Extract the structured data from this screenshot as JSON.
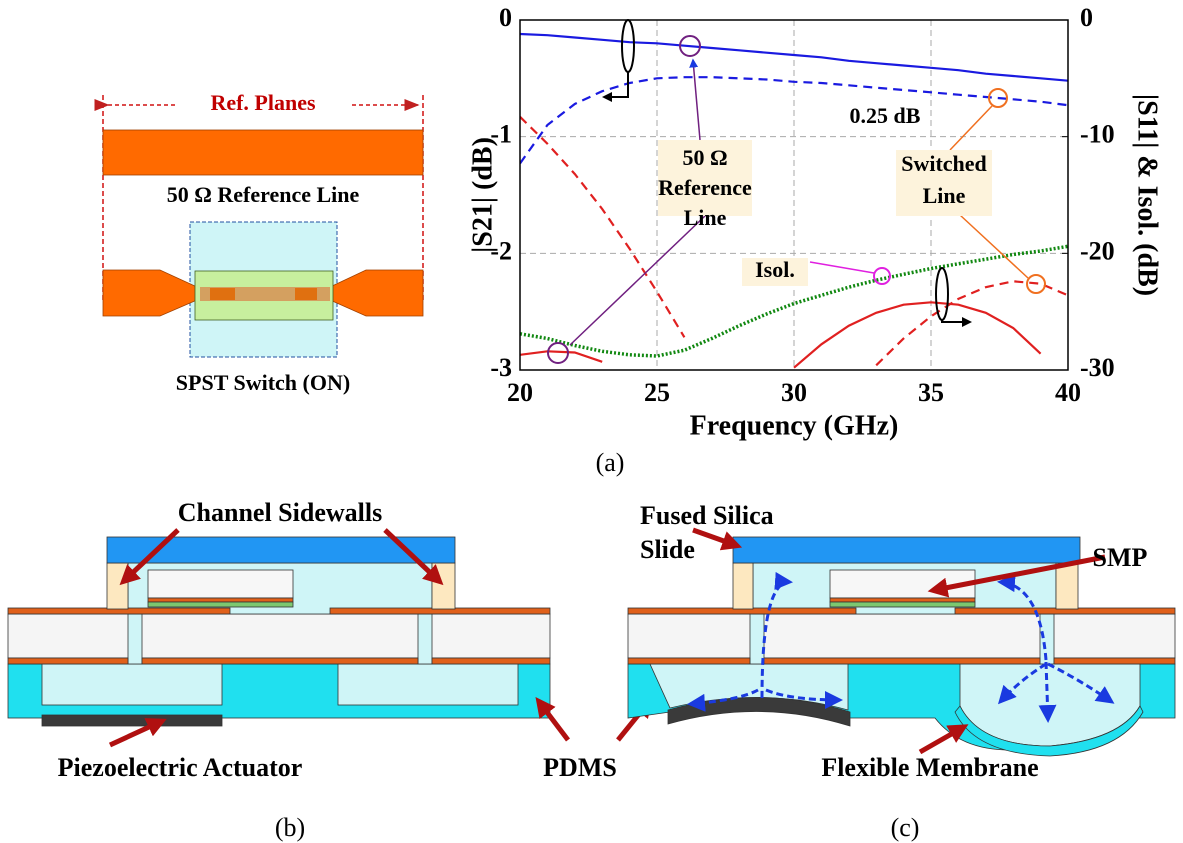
{
  "chart_data": {
    "type": "line",
    "x_label": "Frequency (GHz)",
    "y_label": "|S21| (dB)",
    "y2_label": "|S11| & Isol. (dB)",
    "x": [
      20,
      21,
      22,
      23,
      24,
      25,
      26,
      27,
      28,
      29,
      30,
      31,
      32,
      33,
      34,
      35,
      36,
      37,
      38,
      39,
      40
    ],
    "xlim": [
      20,
      40
    ],
    "xticks": [
      20,
      25,
      30,
      35,
      40
    ],
    "ylim": [
      -3,
      0
    ],
    "yticks": [
      0,
      -1,
      -2,
      -3
    ],
    "y2lim": [
      -30,
      0
    ],
    "y2ticks": [
      0,
      -10,
      -20,
      -30
    ],
    "grid": true,
    "series": [
      {
        "color": "#1a1ae0",
        "dash": "solid",
        "values": [
          -0.12,
          -0.13,
          -0.15,
          -0.17,
          -0.19,
          -0.2,
          -0.22,
          -0.24,
          -0.26,
          -0.28,
          -0.3,
          -0.32,
          -0.35,
          -0.37,
          -0.39,
          -0.41,
          -0.43,
          -0.46,
          -0.48,
          -0.5,
          -0.52
        ]
      },
      {
        "color": "#1a1ae0",
        "dash": "dashed",
        "values": [
          -1.23,
          -0.9,
          -0.72,
          -0.61,
          -0.54,
          -0.5,
          -0.49,
          -0.49,
          -0.5,
          -0.51,
          -0.53,
          -0.54,
          -0.56,
          -0.58,
          -0.6,
          -0.62,
          -0.64,
          -0.66,
          -0.68,
          -0.7,
          -0.73
        ]
      },
      {
        "color": "#e02020",
        "dash": "solid",
        "axis": "y2",
        "values": [
          -28.7,
          -28.4,
          -28.5,
          -29.3,
          null,
          null,
          null,
          null,
          null,
          null,
          -29.8,
          -27.8,
          -26.2,
          -25.1,
          -24.4,
          -24.2,
          -24.4,
          -25.1,
          -26.4,
          -28.6,
          null
        ]
      },
      {
        "color": "#e02020",
        "dash": "dashed",
        "axis": "y2",
        "values": [
          -8.3,
          -10.6,
          -13.2,
          -16.2,
          -19.6,
          -23.3,
          -27.2,
          null,
          null,
          null,
          null,
          null,
          null,
          -29.6,
          -27.3,
          -25.4,
          -23.9,
          -22.9,
          -22.4,
          -22.6,
          -23.6
        ]
      },
      {
        "color": "#118811",
        "dash": "dotted",
        "axis": "y2",
        "values": [
          -26.9,
          -27.3,
          -27.9,
          -28.4,
          -28.7,
          -28.8,
          -28.3,
          -27.3,
          -26.2,
          -25.2,
          -24.3,
          -23.6,
          -22.9,
          -22.3,
          -21.8,
          -21.3,
          -20.9,
          -20.5,
          -20.1,
          -19.8,
          -19.4
        ]
      }
    ],
    "annotations": [
      [
        "50 Ω",
        "Reference",
        "Line"
      ],
      [
        "Switched",
        "Line"
      ],
      [
        "Isol."
      ],
      [
        "0.25 dB"
      ]
    ]
  },
  "figure_a": {
    "ref_planes": "Ref. Planes",
    "reference_line": "50 Ω Reference Line",
    "switch": "SPST Switch (ON)",
    "caption": "(a)"
  },
  "figure_b": {
    "sidewalls": "Channel Sidewalls",
    "actuator": "Piezoelectric Actuator",
    "pdms": "PDMS",
    "caption": "(b)"
  },
  "figure_c": {
    "slide": [
      "Fused Silica",
      "Slide"
    ],
    "smp": "SMP",
    "membrane": "Flexible Membrane",
    "caption": "(c)"
  }
}
